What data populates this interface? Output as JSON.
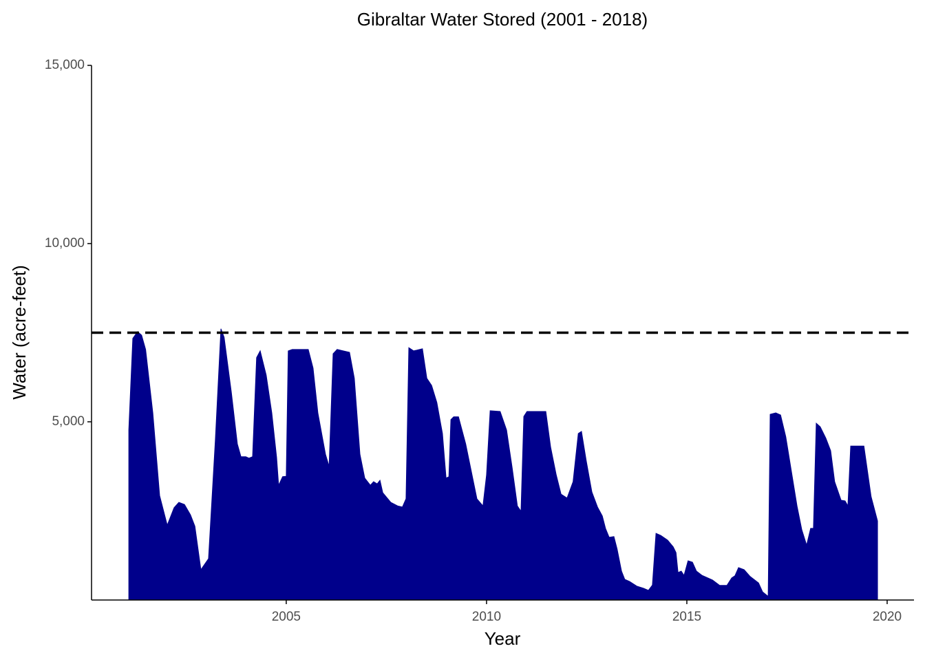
{
  "chart_data": {
    "type": "area",
    "title": "Gibraltar Water Stored (2001 - 2018)",
    "x_label": "Year",
    "y_label": "Water (acre-feet)",
    "color": "#00008b",
    "hline": 7500,
    "xlim": [
      2000.14,
      2020.67
    ],
    "xticks": [
      2005,
      2010,
      2015,
      2020
    ],
    "ylim": [
      0,
      15000
    ],
    "yticks": [
      {
        "value": 5000,
        "label": "5,000"
      },
      {
        "value": 10000,
        "label": "10,000"
      },
      {
        "value": 15000,
        "label": "15,000"
      }
    ],
    "x": [
      2001.07,
      2001.17,
      2001.29,
      2001.39,
      2001.49,
      2001.67,
      2001.84,
      2002.03,
      2002.2,
      2002.32,
      2002.46,
      2002.61,
      2002.72,
      2002.87,
      2003.06,
      2003.23,
      2003.37,
      2003.45,
      2003.63,
      2003.78,
      2003.87,
      2003.99,
      2004.07,
      2004.16,
      2004.26,
      2004.35,
      2004.5,
      2004.64,
      2004.76,
      2004.81,
      2004.91,
      2005.0,
      2005.05,
      2005.15,
      2005.55,
      2005.67,
      2005.79,
      2005.98,
      2006.07,
      2006.17,
      2006.27,
      2006.58,
      2006.7,
      2006.84,
      2006.96,
      2007.1,
      2007.18,
      2007.27,
      2007.34,
      2007.41,
      2007.61,
      2007.78,
      2007.9,
      2007.99,
      2008.06,
      2008.18,
      2008.26,
      2008.4,
      2008.51,
      2008.63,
      2008.76,
      2008.9,
      2008.99,
      2009.06,
      2009.11,
      2009.18,
      2009.3,
      2009.48,
      2009.62,
      2009.76,
      2009.91,
      2010.0,
      2010.09,
      2010.34,
      2010.5,
      2010.64,
      2010.77,
      2010.86,
      2010.93,
      2011.01,
      2011.48,
      2011.6,
      2011.74,
      2011.86,
      2012.01,
      2012.16,
      2012.29,
      2012.37,
      2012.49,
      2012.63,
      2012.77,
      2012.89,
      2012.97,
      2013.06,
      2013.18,
      2013.26,
      2013.37,
      2013.45,
      2013.57,
      2013.75,
      2013.92,
      2014.04,
      2014.14,
      2014.23,
      2014.35,
      2014.52,
      2014.66,
      2014.73,
      2014.78,
      2014.86,
      2014.93,
      2015.03,
      2015.14,
      2015.24,
      2015.38,
      2015.64,
      2015.82,
      2016.0,
      2016.12,
      2016.2,
      2016.29,
      2016.43,
      2016.58,
      2016.79,
      2016.89,
      2017.03,
      2017.08,
      2017.22,
      2017.34,
      2017.47,
      2017.61,
      2017.75,
      2017.87,
      2017.99,
      2018.09,
      2018.16,
      2018.23,
      2018.33,
      2018.47,
      2018.59,
      2018.69,
      2018.85,
      2018.95,
      2019.02,
      2019.09,
      2019.19,
      2019.42,
      2019.6,
      2019.76
    ],
    "values": [
      4770,
      7340,
      7530,
      7430,
      7030,
      5250,
      2930,
      2100,
      2590,
      2740,
      2680,
      2390,
      2070,
      850,
      1160,
      4480,
      7610,
      7370,
      5830,
      4380,
      4020,
      4020,
      3980,
      4020,
      6800,
      6990,
      6310,
      5250,
      4000,
      3220,
      3460,
      3470,
      6990,
      7030,
      7030,
      6510,
      5250,
      4090,
      3750,
      6910,
      7030,
      6950,
      6220,
      4090,
      3420,
      3220,
      3320,
      3260,
      3360,
      3010,
      2740,
      2640,
      2610,
      2840,
      7080,
      6990,
      7010,
      7050,
      6220,
      6020,
      5540,
      4670,
      3420,
      3460,
      5060,
      5140,
      5140,
      4380,
      3610,
      2840,
      2640,
      3510,
      5310,
      5290,
      4770,
      3710,
      2640,
      2490,
      5150,
      5290,
      5290,
      4290,
      3510,
      2970,
      2860,
      3320,
      4670,
      4730,
      3900,
      3030,
      2610,
      2360,
      2010,
      1760,
      1780,
      1430,
      810,
      580,
      520,
      390,
      330,
      270,
      420,
      1870,
      1810,
      1680,
      1490,
      1330,
      770,
      810,
      690,
      1100,
      1060,
      810,
      690,
      560,
      410,
      410,
      620,
      680,
      910,
      850,
      660,
      480,
      230,
      100,
      5210,
      5250,
      5190,
      4580,
      3610,
      2640,
      1970,
      1540,
      2010,
      2010,
      4960,
      4860,
      4540,
      4190,
      3320,
      2800,
      2780,
      2640,
      4320,
      4320,
      4320,
      2900,
      2220
    ]
  }
}
